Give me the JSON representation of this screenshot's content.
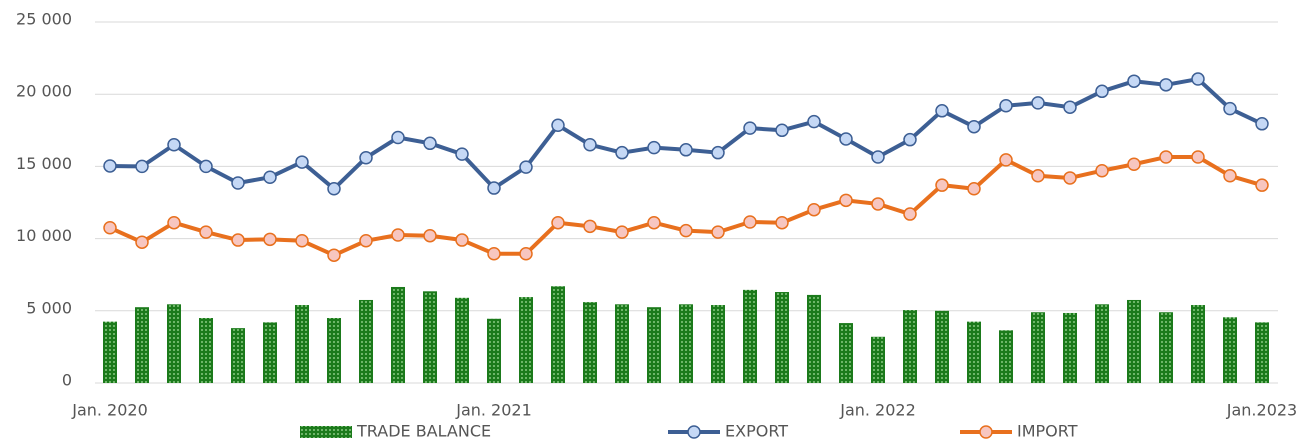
{
  "chart_data": {
    "type": "combo",
    "categories": [
      "Jan. 2020",
      null,
      null,
      null,
      null,
      null,
      null,
      null,
      null,
      null,
      null,
      null,
      "Jan. 2021",
      null,
      null,
      null,
      null,
      null,
      null,
      null,
      null,
      null,
      null,
      null,
      "Jan. 2022",
      null,
      null,
      null,
      null,
      null,
      null,
      null,
      null,
      null,
      null,
      null,
      "Jan.2023"
    ],
    "series": [
      {
        "name": "TRADE BALANCE",
        "type": "bar",
        "color": "#1b7a1b",
        "values": [
          4250,
          5250,
          5450,
          4500,
          3800,
          4200,
          5400,
          4500,
          5750,
          6650,
          6350,
          5900,
          4450,
          5950,
          6700,
          5600,
          5450,
          5250,
          5450,
          5400,
          6450,
          6300,
          6100,
          4150,
          3200,
          5050,
          5000,
          4250,
          3650,
          4900,
          4850,
          5450,
          5750,
          4900,
          5400,
          4550,
          4200
        ]
      },
      {
        "name": "EXPORT",
        "type": "line",
        "color": "#3d5f94",
        "values": [
          15030,
          15000,
          16500,
          15000,
          13850,
          14250,
          15300,
          13450,
          15600,
          17000,
          16600,
          15850,
          13500,
          14950,
          17850,
          16500,
          15950,
          16300,
          16150,
          15950,
          17650,
          17500,
          18100,
          16900,
          15650,
          16850,
          18850,
          17750,
          19200,
          19400,
          19100,
          20200,
          20900,
          20650,
          21050,
          19000,
          17950
        ]
      },
      {
        "name": "IMPORT",
        "type": "line",
        "color": "#e8701e",
        "values": [
          10750,
          9750,
          11100,
          10450,
          9900,
          9950,
          9850,
          8850,
          9850,
          10250,
          10200,
          9900,
          8950,
          8950,
          11100,
          10850,
          10450,
          11100,
          10550,
          10450,
          11150,
          11100,
          12000,
          12650,
          12400,
          11700,
          13700,
          13450,
          15450,
          14350,
          14200,
          14700,
          15150,
          15650,
          15650,
          14350,
          13700
        ]
      }
    ],
    "ylim": [
      0,
      25000
    ],
    "yticks": [
      0,
      {
        "value": 5000,
        "label": "5 000"
      },
      {
        "value": 10000,
        "label": "10 000"
      },
      {
        "value": 15000,
        "label": "15 000"
      },
      {
        "value": 20000,
        "label": "20 000"
      },
      {
        "value": 25000,
        "label": "25 000"
      }
    ],
    "grid": true,
    "legend": "bottom"
  }
}
